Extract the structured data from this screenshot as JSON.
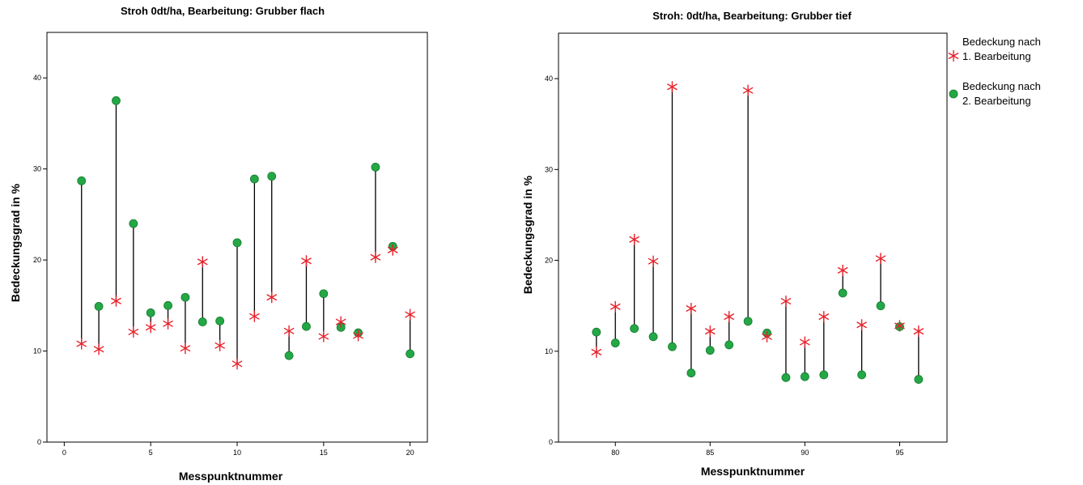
{
  "colors": {
    "series1": "#e8212a",
    "series2": "#23a845",
    "axis": "#000000"
  },
  "legend": {
    "placement": "right",
    "items": [
      {
        "lines": [
          "Bedeckung nach",
          "1. Bearbeitung"
        ],
        "marker": "star",
        "series": 0
      },
      {
        "lines": [
          "Bedeckung nach",
          "2. Bearbeitung"
        ],
        "marker": "dot",
        "series": 1
      }
    ]
  },
  "chart_data": [
    {
      "type": "scatter",
      "title": "Stroh 0dt/ha, Bearbeitung: Grubber flach",
      "xlabel": "Messpunktnummer",
      "ylabel": "Bedeckungsgrad in %",
      "xlim": [
        -1,
        21
      ],
      "ylim": [
        0,
        45
      ],
      "xticks": [
        0,
        5,
        10,
        15,
        20
      ],
      "yticks": [
        0,
        10,
        20,
        30,
        40
      ],
      "x": [
        1,
        2,
        3,
        4,
        5,
        6,
        7,
        8,
        9,
        10,
        11,
        12,
        13,
        14,
        15,
        16,
        17,
        18,
        19,
        20
      ],
      "series": [
        {
          "marker": "star",
          "values": [
            10.8,
            10.2,
            15.5,
            12.1,
            12.6,
            13.0,
            10.3,
            19.8,
            10.6,
            8.6,
            13.8,
            15.9,
            12.2,
            19.9,
            11.6,
            13.2,
            11.7,
            20.3,
            21.1,
            14.0
          ]
        },
        {
          "marker": "dot",
          "values": [
            28.7,
            14.9,
            37.5,
            24.0,
            14.2,
            15.0,
            15.9,
            13.2,
            13.3,
            21.9,
            28.9,
            29.2,
            9.5,
            12.7,
            16.3,
            12.6,
            12.0,
            30.2,
            21.5,
            9.7
          ]
        }
      ]
    },
    {
      "type": "scatter",
      "title": "Stroh: 0dt/ha, Bearbeitung: Grubber tief",
      "xlabel": "Messpunktnummer",
      "ylabel": "Bedeckungsgrad in %",
      "xlim": [
        77,
        97.5
      ],
      "ylim": [
        0,
        45
      ],
      "xticks": [
        80,
        85,
        90,
        95
      ],
      "yticks": [
        0,
        10,
        20,
        30,
        40
      ],
      "x": [
        79,
        80,
        81,
        82,
        83,
        84,
        85,
        86,
        87,
        88,
        89,
        90,
        91,
        92,
        93,
        94,
        95,
        96
      ],
      "series": [
        {
          "marker": "star",
          "values": [
            9.9,
            14.9,
            22.3,
            19.9,
            39.1,
            14.7,
            12.2,
            13.8,
            38.7,
            11.6,
            15.5,
            11.0,
            13.8,
            18.9,
            12.9,
            20.2,
            12.8,
            12.2
          ]
        },
        {
          "marker": "dot",
          "values": [
            12.1,
            10.9,
            12.5,
            11.6,
            10.5,
            7.6,
            10.1,
            10.7,
            13.3,
            12.0,
            7.1,
            7.2,
            7.4,
            16.4,
            7.4,
            15.0,
            12.7,
            6.9
          ]
        }
      ]
    }
  ]
}
